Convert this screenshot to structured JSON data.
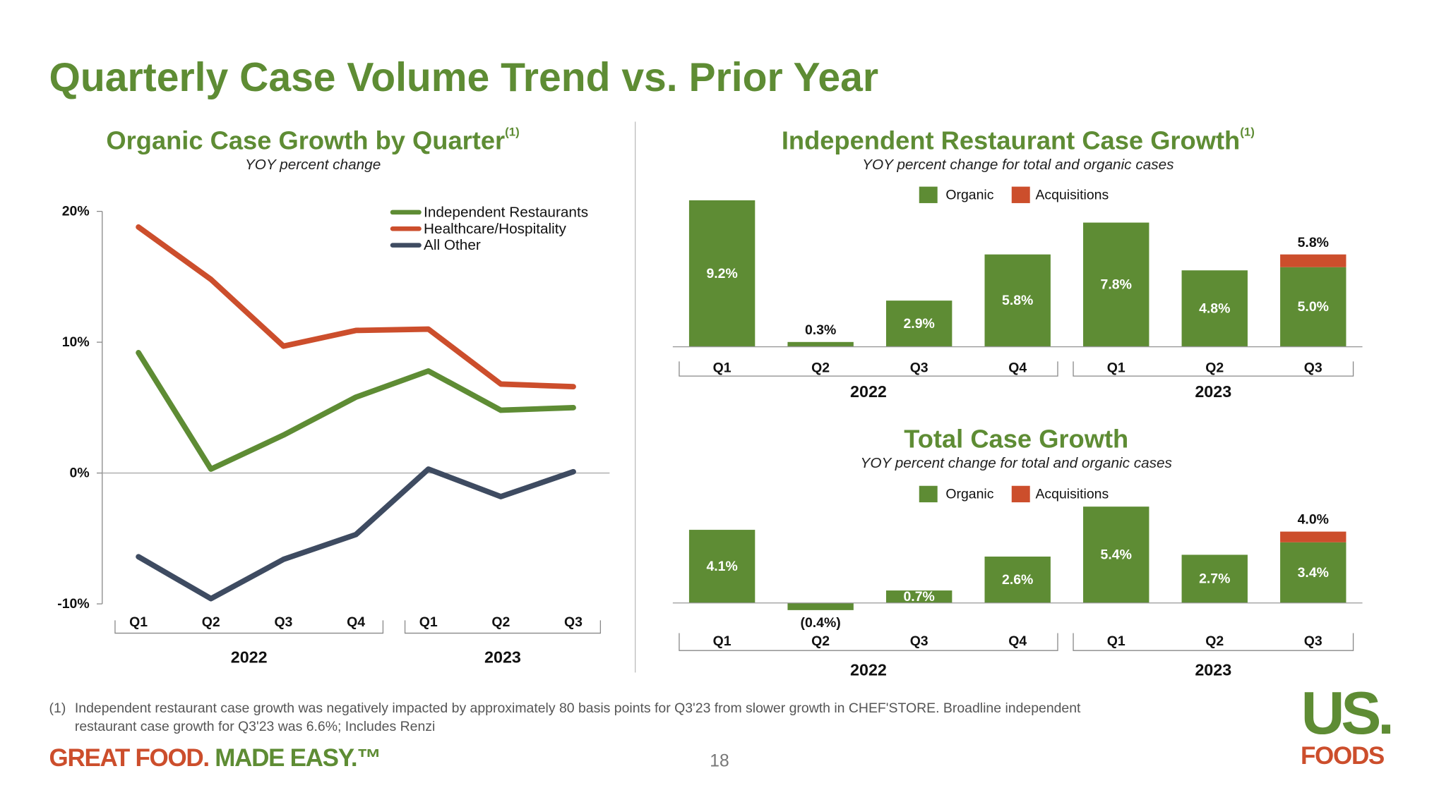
{
  "header": {
    "title": "Quarterly Case Volume Trend vs. Prior Year"
  },
  "chart_data": [
    {
      "type": "line",
      "title": "Organic Case Growth by Quarter",
      "title_note": "(1)",
      "subtitle": "YOY percent change",
      "category_groups": [
        {
          "label": "2022",
          "categories": [
            "Q1",
            "Q2",
            "Q3",
            "Q4"
          ]
        },
        {
          "label": "2023",
          "categories": [
            "Q1",
            "Q2",
            "Q3"
          ]
        }
      ],
      "series": [
        {
          "name": "Independent Restaurants",
          "color": "#5e8c34",
          "values": [
            9.2,
            0.3,
            2.9,
            5.8,
            7.8,
            4.8,
            5.0
          ]
        },
        {
          "name": "Healthcare/Hospitality",
          "color": "#cc4e2c",
          "values": [
            18.8,
            14.8,
            9.7,
            10.9,
            11.0,
            6.8,
            6.6
          ]
        },
        {
          "name": "All Other",
          "color": "#3e4b61",
          "values": [
            -6.4,
            -9.6,
            -6.6,
            -4.7,
            0.3,
            -1.8,
            0.1
          ]
        }
      ],
      "ylim": [
        -10,
        20
      ],
      "yticks": [
        {
          "value": -10,
          "label": "-10%"
        },
        {
          "value": 0,
          "label": "0%"
        },
        {
          "value": 10,
          "label": "10%"
        },
        {
          "value": 20,
          "label": "20%"
        }
      ],
      "legend": "upper right"
    },
    {
      "type": "stacked_bar",
      "title": "Independent Restaurant Case Growth",
      "title_note": "(1)",
      "subtitle": "YOY percent change for total and organic cases",
      "category_groups": [
        {
          "label": "2022",
          "categories": [
            "Q1",
            "Q2",
            "Q3",
            "Q4"
          ]
        },
        {
          "label": "2023",
          "categories": [
            "Q1",
            "Q2",
            "Q3"
          ]
        }
      ],
      "series": [
        {
          "name": "Organic",
          "color": "#5e8c34",
          "values": [
            9.2,
            0.3,
            2.9,
            5.8,
            7.8,
            4.8,
            5.0
          ],
          "value_labels": [
            "9.2%",
            "0.3%",
            "2.9%",
            "5.8%",
            "7.8%",
            "4.8%",
            "5.0%"
          ]
        },
        {
          "name": "Acquisitions",
          "color": "#cc4e2c",
          "values": [
            null,
            null,
            null,
            null,
            null,
            null,
            0.8
          ]
        }
      ],
      "totals": [
        null,
        null,
        null,
        null,
        null,
        null,
        5.8
      ],
      "total_labels": [
        null,
        null,
        null,
        null,
        null,
        null,
        "5.8%"
      ],
      "ylim": [
        0,
        10
      ],
      "legend": "top"
    },
    {
      "type": "stacked_bar",
      "title": "Total Case Growth",
      "subtitle": "YOY percent change for total and organic cases",
      "category_groups": [
        {
          "label": "2022",
          "categories": [
            "Q1",
            "Q2",
            "Q3",
            "Q4"
          ]
        },
        {
          "label": "2023",
          "categories": [
            "Q1",
            "Q2",
            "Q3"
          ]
        }
      ],
      "series": [
        {
          "name": "Organic",
          "color": "#5e8c34",
          "values": [
            4.1,
            -0.4,
            0.7,
            2.6,
            5.4,
            2.7,
            3.4
          ],
          "value_labels": [
            "4.1%",
            "(0.4%)",
            "0.7%",
            "2.6%",
            "5.4%",
            "2.7%",
            "3.4%"
          ]
        },
        {
          "name": "Acquisitions",
          "color": "#cc4e2c",
          "values": [
            null,
            null,
            null,
            null,
            null,
            null,
            0.6
          ]
        }
      ],
      "totals": [
        null,
        null,
        null,
        null,
        null,
        null,
        4.0
      ],
      "total_labels": [
        null,
        null,
        null,
        null,
        null,
        null,
        "4.0%"
      ],
      "ylim": [
        -1,
        6
      ],
      "legend": "top"
    }
  ],
  "footnote": {
    "marker": "(1)",
    "lines": [
      "Independent restaurant case growth was negatively impacted by approximately 80 basis points for Q3'23 from slower growth in CHEF'STORE. Broadline independent",
      "restaurant case growth for Q3'23 was 6.6%; Includes Renzi"
    ]
  },
  "footer": {
    "tagline": [
      "GREAT FOOD.",
      "MADE EASY.™"
    ],
    "page": "18",
    "logo": [
      "US.",
      "FOODS"
    ]
  }
}
